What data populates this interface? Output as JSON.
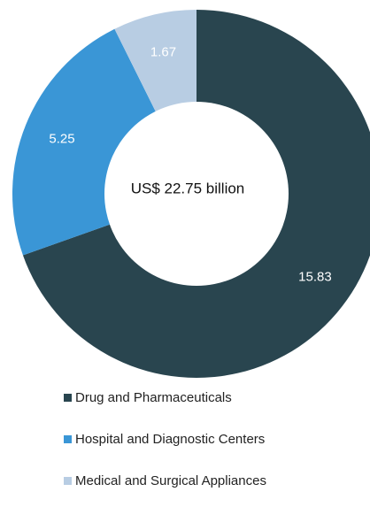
{
  "chart_data": {
    "type": "pie",
    "center_label": "US$ 22.75 billion",
    "categories": [
      "Drug and Pharmaceuticals",
      "Hospital and Diagnostic Centers",
      "Medical and Surgical Appliances"
    ],
    "values": [
      15.83,
      5.25,
      1.67
    ],
    "value_labels": [
      "15.83",
      "5.25",
      "1.67"
    ],
    "colors": [
      "#29454f",
      "#3a96d6",
      "#b8cde3"
    ],
    "label_colors": [
      "#ffffff",
      "#ffffff",
      "#ffffff"
    ],
    "hole": true,
    "legend_position": "bottom",
    "start_angle": "12 o'clock",
    "direction": "clockwise"
  }
}
